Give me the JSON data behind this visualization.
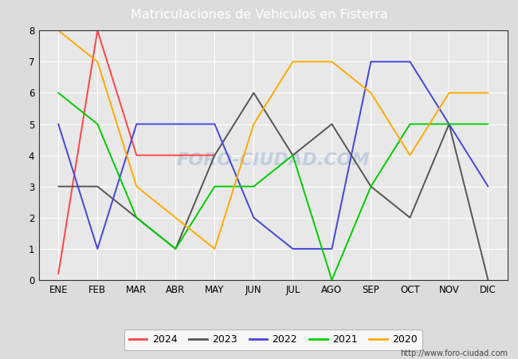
{
  "title": "Matriculaciones de Vehiculos en Fisterra",
  "months": [
    "ENE",
    "FEB",
    "MAR",
    "ABR",
    "MAY",
    "JUN",
    "JUL",
    "AGO",
    "SEP",
    "OCT",
    "NOV",
    "DIC"
  ],
  "series": {
    "2024": [
      0.2,
      8.0,
      4.0,
      4.0,
      4.0,
      null,
      null,
      null,
      null,
      null,
      null,
      null
    ],
    "2023": [
      3.0,
      3.0,
      2.0,
      1.0,
      4.0,
      6.0,
      4.0,
      5.0,
      3.0,
      2.0,
      5.0,
      0.0
    ],
    "2022": [
      5.0,
      1.0,
      5.0,
      5.0,
      5.0,
      2.0,
      1.0,
      1.0,
      7.0,
      7.0,
      5.0,
      3.0
    ],
    "2021": [
      6.0,
      5.0,
      2.0,
      1.0,
      3.0,
      3.0,
      4.0,
      0.0,
      3.0,
      5.0,
      5.0,
      5.0
    ],
    "2020": [
      8.0,
      7.0,
      3.0,
      2.0,
      1.0,
      5.0,
      7.0,
      7.0,
      6.0,
      4.0,
      6.0,
      6.0
    ]
  },
  "colors": {
    "2024": "#ff4444",
    "2023": "#555555",
    "2022": "#4444dd",
    "2021": "#00cc00",
    "2020": "#ffaa00"
  },
  "ylim": [
    0.0,
    8.0
  ],
  "yticks": [
    0.0,
    1.0,
    2.0,
    3.0,
    4.0,
    5.0,
    6.0,
    7.0,
    8.0
  ],
  "outer_bg_color": "#dcdcdc",
  "plot_bg_color": "#e8e8e8",
  "title_bg_color": "#4d8fcc",
  "title_color": "#ffffff",
  "grid_color": "#ffffff",
  "watermark": "FORO-CIUDAD.COM",
  "url": "http://www.foro-ciudad.com",
  "legend_order": [
    "2024",
    "2023",
    "2022",
    "2021",
    "2020"
  ]
}
